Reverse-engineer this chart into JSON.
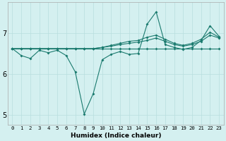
{
  "xlabel": "Humidex (Indice chaleur)",
  "background_color": "#d4f0f0",
  "grid_color": "#b8dede",
  "line_color": "#1a7a6e",
  "x_values": [
    0,
    1,
    2,
    3,
    4,
    5,
    6,
    7,
    8,
    9,
    10,
    11,
    12,
    13,
    14,
    15,
    16,
    17,
    18,
    19,
    20,
    21,
    22,
    23
  ],
  "series": [
    [
      6.62,
      6.62,
      6.62,
      6.62,
      6.62,
      6.62,
      6.62,
      6.62,
      6.62,
      6.62,
      6.62,
      6.62,
      6.62,
      6.62,
      6.62,
      6.62,
      6.62,
      6.62,
      6.62,
      6.62,
      6.62,
      6.62,
      6.62,
      6.62
    ],
    [
      6.62,
      6.62,
      6.62,
      6.62,
      6.62,
      6.62,
      6.62,
      6.62,
      6.62,
      6.62,
      6.65,
      6.68,
      6.72,
      6.75,
      6.78,
      6.82,
      6.88,
      6.8,
      6.72,
      6.68,
      6.72,
      6.8,
      6.95,
      6.88
    ],
    [
      6.62,
      6.62,
      6.62,
      6.62,
      6.62,
      6.62,
      6.62,
      6.62,
      6.62,
      6.62,
      6.65,
      6.7,
      6.75,
      6.8,
      6.82,
      6.9,
      6.95,
      6.85,
      6.75,
      6.7,
      6.75,
      6.85,
      7.02,
      6.9
    ],
    [
      6.62,
      6.45,
      6.38,
      6.58,
      6.52,
      6.58,
      6.45,
      6.05,
      5.02,
      5.52,
      6.35,
      6.48,
      6.55,
      6.48,
      6.5,
      7.22,
      7.52,
      6.72,
      6.65,
      6.6,
      6.65,
      6.82,
      7.18,
      6.92
    ]
  ],
  "ylim": [
    4.75,
    7.75
  ],
  "yticks": [
    5,
    6,
    7
  ],
  "xticks": [
    0,
    1,
    2,
    3,
    4,
    5,
    6,
    7,
    8,
    9,
    10,
    11,
    12,
    13,
    14,
    15,
    16,
    17,
    18,
    19,
    20,
    21,
    22,
    23
  ]
}
